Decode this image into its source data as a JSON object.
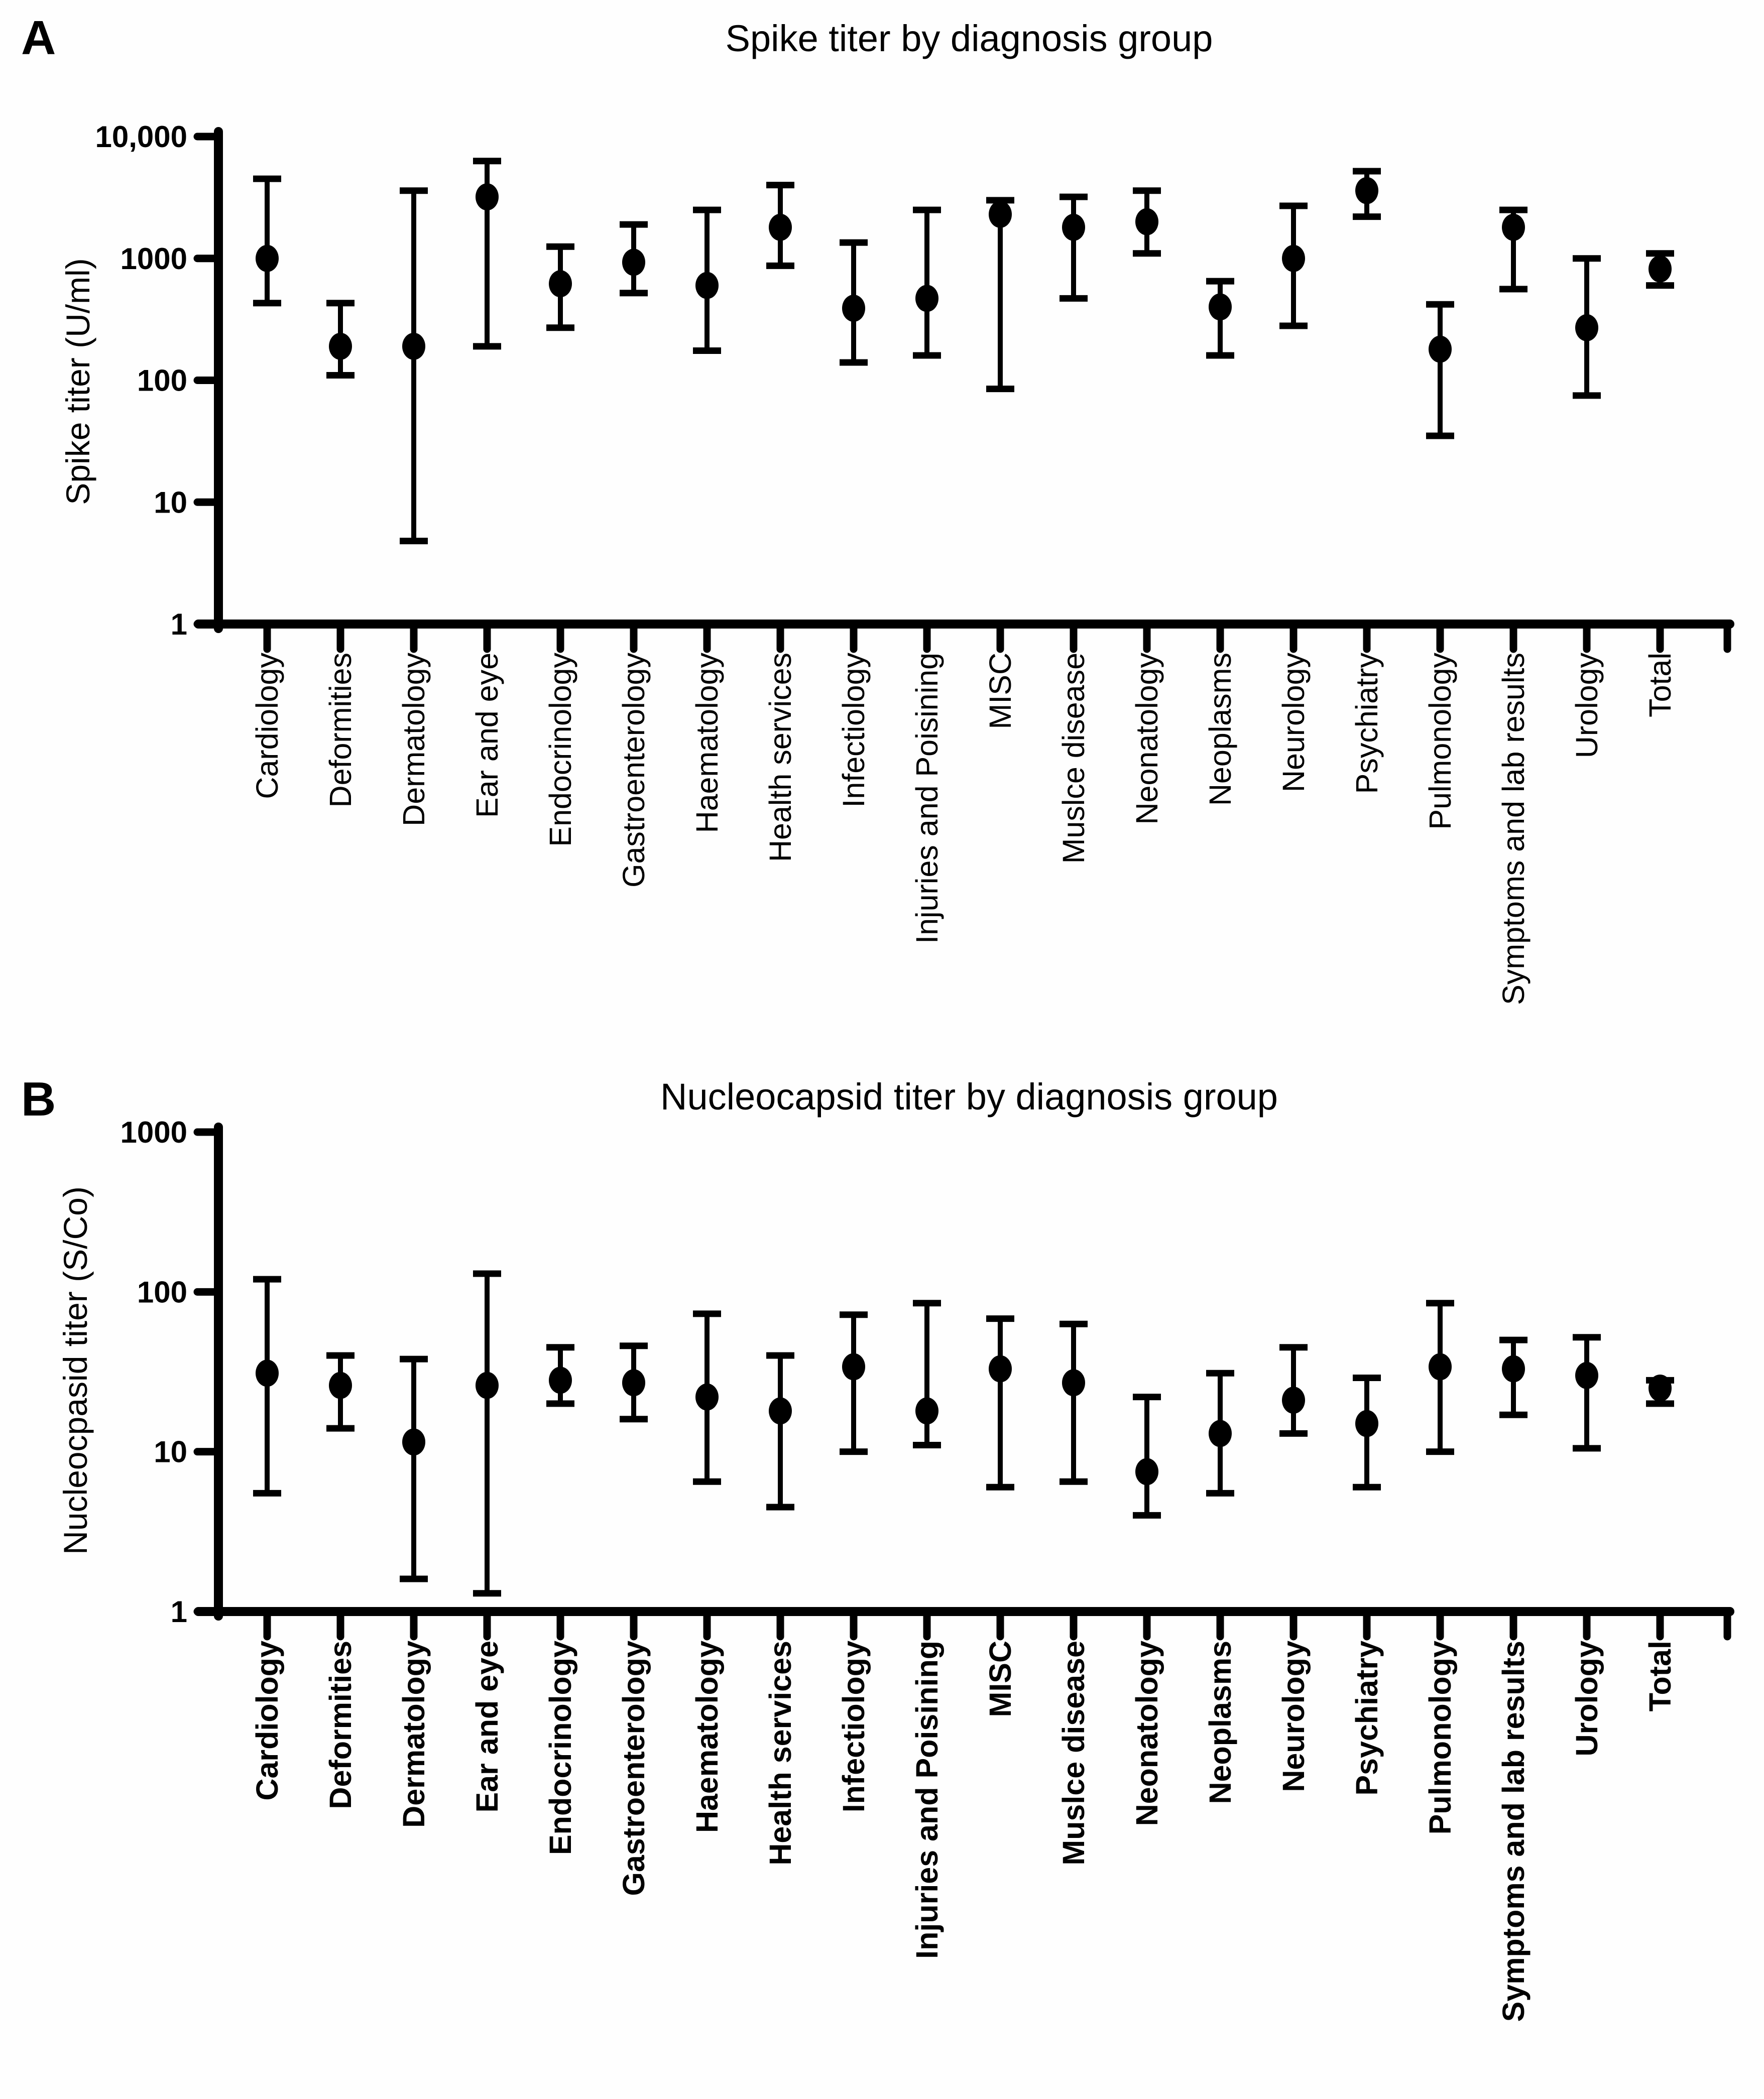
{
  "figure": {
    "background": "#fefefe",
    "ink_color": "#000000",
    "panels": [
      {
        "letter": "A",
        "title": "Spike titer by diagnosis group",
        "ylabel": "Spike titer (U/ml)"
      },
      {
        "letter": "B",
        "title": "Nucleocapsid titer by diagnosis group",
        "ylabel": "Nucleocpasid titer (S/Co)"
      }
    ]
  },
  "chart_data": [
    {
      "panel": "A",
      "type": "scatter",
      "subtype": "point-with-error-bars",
      "title": "Spike titer by diagnosis group",
      "xlabel": "",
      "ylabel": "Spike titer (U/ml)",
      "yscale": "log",
      "ylim": [
        1,
        10000
      ],
      "yticks": [
        1,
        10,
        100,
        1000,
        10000
      ],
      "ytick_labels": [
        "1",
        "10",
        "100",
        "1000",
        "10,000"
      ],
      "grid": false,
      "legend": "none",
      "marker_color": "#000000",
      "error_color": "#000000",
      "category_label_bold": false,
      "categories": [
        "Cardiology",
        "Deformities",
        "Dermatology",
        "Ear and eye",
        "Endocrinology",
        "Gastroenterology",
        "Haematology",
        "Health services",
        "Infectiology",
        "Injuries and Poisining",
        "MISC",
        "Muslce disease",
        "Neonatology",
        "Neoplasms",
        "Neurology",
        "Psychiatry",
        "Pulmonology",
        "Symptoms and lab results",
        "Urology",
        "Total"
      ],
      "series": [
        {
          "name": "Spike titer (U/ml)",
          "points": [
            {
              "category": "Cardiology",
              "y": 1000,
              "lo": 430,
              "hi": 4500
            },
            {
              "category": "Deformities",
              "y": 190,
              "lo": 110,
              "hi": 430
            },
            {
              "category": "Dermatology",
              "y": 190,
              "lo": 4.8,
              "hi": 3600
            },
            {
              "category": "Ear and eye",
              "y": 3200,
              "lo": 190,
              "hi": 6300
            },
            {
              "category": "Endocrinology",
              "y": 620,
              "lo": 270,
              "hi": 1250
            },
            {
              "category": "Gastroenterology",
              "y": 930,
              "lo": 520,
              "hi": 1900
            },
            {
              "category": "Haematology",
              "y": 600,
              "lo": 175,
              "hi": 2500
            },
            {
              "category": "Health services",
              "y": 1800,
              "lo": 870,
              "hi": 4000
            },
            {
              "category": "Infectiology",
              "y": 390,
              "lo": 140,
              "hi": 1350
            },
            {
              "category": "Injuries and Poisining",
              "y": 470,
              "lo": 160,
              "hi": 2500
            },
            {
              "category": "MISC",
              "y": 2300,
              "lo": 85,
              "hi": 3000
            },
            {
              "category": "Muslce disease",
              "y": 1800,
              "lo": 470,
              "hi": 3200
            },
            {
              "category": "Neonatology",
              "y": 2000,
              "lo": 1100,
              "hi": 3600
            },
            {
              "category": "Neoplasms",
              "y": 400,
              "lo": 160,
              "hi": 650
            },
            {
              "category": "Neurology",
              "y": 1000,
              "lo": 280,
              "hi": 2700
            },
            {
              "category": "Psychiatry",
              "y": 3600,
              "lo": 2200,
              "hi": 5200
            },
            {
              "category": "Pulmonology",
              "y": 180,
              "lo": 35,
              "hi": 420
            },
            {
              "category": "Symptoms and lab results",
              "y": 1800,
              "lo": 560,
              "hi": 2500
            },
            {
              "category": "Urology",
              "y": 270,
              "lo": 75,
              "hi": 1000
            },
            {
              "category": "Total",
              "y": 820,
              "lo": 600,
              "hi": 1100
            }
          ]
        }
      ]
    },
    {
      "panel": "B",
      "type": "scatter",
      "subtype": "point-with-error-bars",
      "title": "Nucleocapsid titer by diagnosis group",
      "xlabel": "",
      "ylabel": "Nucleocpasid titer (S/Co)",
      "yscale": "log",
      "ylim": [
        1,
        1000
      ],
      "yticks": [
        1,
        10,
        100,
        1000
      ],
      "ytick_labels": [
        "1",
        "10",
        "100",
        "1000"
      ],
      "grid": false,
      "legend": "none",
      "marker_color": "#000000",
      "error_color": "#000000",
      "category_label_bold": true,
      "categories": [
        "Cardiology",
        "Deformities",
        "Dermatology",
        "Ear and eye",
        "Endocrinology",
        "Gastroenterology",
        "Haematology",
        "Health services",
        "Infectiology",
        "Injuries and Poisining",
        "MISC",
        "Muslce disease",
        "Neonatology",
        "Neoplasms",
        "Neurology",
        "Psychiatry",
        "Pulmonology",
        "Symptoms and lab results",
        "Urology",
        "Total"
      ],
      "series": [
        {
          "name": "Nucleocapsid titer (S/Co)",
          "points": [
            {
              "category": "Cardiology",
              "y": 31,
              "lo": 5.5,
              "hi": 120
            },
            {
              "category": "Deformities",
              "y": 26,
              "lo": 14,
              "hi": 40
            },
            {
              "category": "Dermatology",
              "y": 11.5,
              "lo": 1.6,
              "hi": 38
            },
            {
              "category": "Ear and eye",
              "y": 26,
              "lo": 1.3,
              "hi": 130
            },
            {
              "category": "Endocrinology",
              "y": 28,
              "lo": 20,
              "hi": 45
            },
            {
              "category": "Gastroenterology",
              "y": 27,
              "lo": 16,
              "hi": 46
            },
            {
              "category": "Haematology",
              "y": 22,
              "lo": 6.5,
              "hi": 73
            },
            {
              "category": "Health services",
              "y": 18,
              "lo": 4.5,
              "hi": 40
            },
            {
              "category": "Infectiology",
              "y": 34,
              "lo": 10,
              "hi": 72
            },
            {
              "category": "Injuries and Poisining",
              "y": 18,
              "lo": 11,
              "hi": 85
            },
            {
              "category": "MISC",
              "y": 33,
              "lo": 6,
              "hi": 68
            },
            {
              "category": "Muslce disease",
              "y": 27,
              "lo": 6.5,
              "hi": 63
            },
            {
              "category": "Neonatology",
              "y": 7.5,
              "lo": 4,
              "hi": 22
            },
            {
              "category": "Neoplasms",
              "y": 13,
              "lo": 5.5,
              "hi": 31
            },
            {
              "category": "Neurology",
              "y": 21,
              "lo": 13,
              "hi": 45
            },
            {
              "category": "Psychiatry",
              "y": 15,
              "lo": 6,
              "hi": 29
            },
            {
              "category": "Pulmonology",
              "y": 34,
              "lo": 10,
              "hi": 85
            },
            {
              "category": "Symptoms and lab results",
              "y": 33,
              "lo": 17,
              "hi": 50
            },
            {
              "category": "Urology",
              "y": 30,
              "lo": 10.5,
              "hi": 52
            },
            {
              "category": "Total",
              "y": 25,
              "lo": 20,
              "hi": 28
            }
          ]
        }
      ]
    }
  ]
}
